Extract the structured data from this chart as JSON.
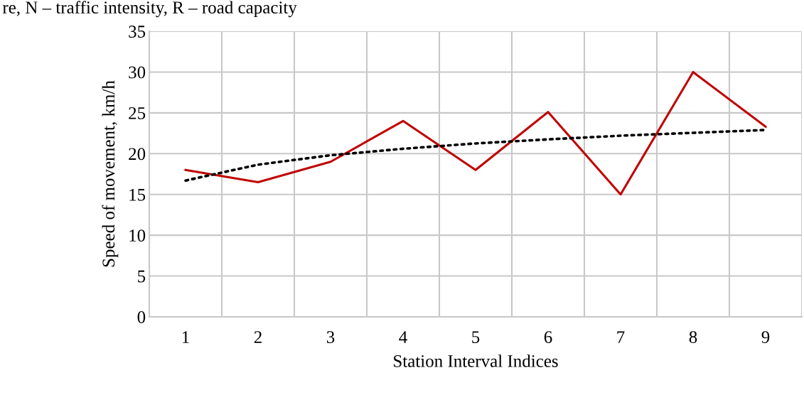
{
  "chart_data": {
    "type": "line",
    "categories": [
      "1",
      "2",
      "3",
      "4",
      "5",
      "6",
      "7",
      "8",
      "9"
    ],
    "series": [
      {
        "color": "#c00000",
        "values": [
          18,
          16.5,
          19,
          24,
          18,
          25.1,
          15,
          30,
          23.3
        ]
      },
      {
        "color": "#000000",
        "line_style": "dotted",
        "values": [
          16.7,
          18.65,
          19.8,
          20.6,
          21.25,
          21.75,
          22.2,
          22.55,
          22.9
        ]
      }
    ],
    "xlabel": "Station Interval Indices",
    "ylabel": "Speed of movement, km/h",
    "ylim": [
      0,
      35
    ],
    "yticks": [
      0,
      5,
      10,
      15,
      20,
      25,
      30,
      35
    ],
    "grid": true,
    "marker": "none",
    "line_style": "solid",
    "legend": false,
    "annotations": [
      "re, N – traffic intensity, R – road capacity"
    ]
  }
}
